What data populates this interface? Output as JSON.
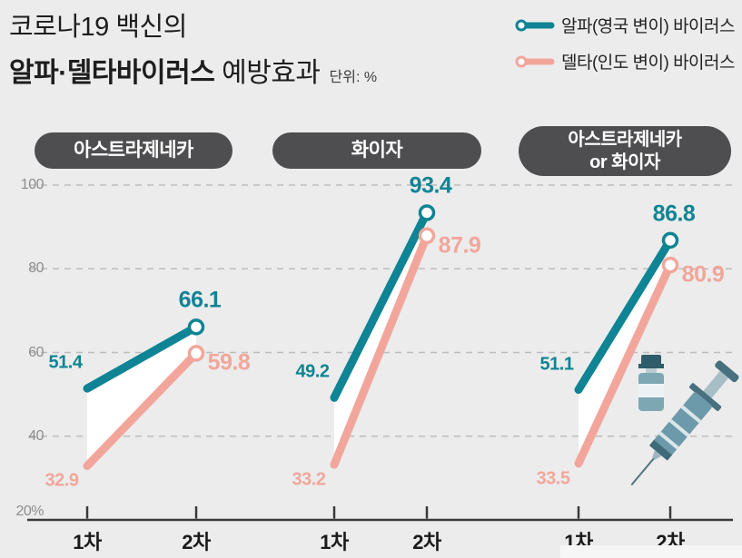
{
  "title": {
    "line1": "코로나19 백신의",
    "line2_bold": "알파·델타바이러스",
    "line2_regular": " 예방효과",
    "unit_label": "단위: %"
  },
  "legend": {
    "items": [
      {
        "label": "알파(영국 변이) 바이러스",
        "color": "#0e8494"
      },
      {
        "label": "델타(인도 변이) 바이러스",
        "color": "#f2a69b"
      }
    ]
  },
  "axis": {
    "y_ticks": [
      "100",
      "80",
      "60",
      "40",
      "20%"
    ],
    "x_labels": [
      "1차",
      "2차"
    ]
  },
  "colors": {
    "alpha": "#0e8494",
    "delta": "#f2a69b",
    "pill_bg": "#4e4e50",
    "background": "#ececec",
    "grid": "#bdbdbd",
    "axis": "#3a3a3a"
  },
  "chart_data": {
    "type": "line",
    "title": "코로나19 백신의 알파·델타바이러스 예방효과",
    "unit": "%",
    "ylim": [
      20,
      100
    ],
    "y_gridlines": [
      100,
      80,
      60,
      40
    ],
    "grid": "dashed",
    "legend_position": "top-right",
    "x": [
      "1차",
      "2차"
    ],
    "panels": [
      {
        "name": "아스트라제네카",
        "series": [
          {
            "name": "알파(영국 변이) 바이러스",
            "color": "#0e8494",
            "values": [
              51.4,
              66.1
            ]
          },
          {
            "name": "델타(인도 변이) 바이러스",
            "color": "#f2a69b",
            "values": [
              32.9,
              59.8
            ]
          }
        ]
      },
      {
        "name": "화이자",
        "series": [
          {
            "name": "알파(영국 변이) 바이러스",
            "color": "#0e8494",
            "values": [
              49.2,
              93.4
            ]
          },
          {
            "name": "델타(인도 변이) 바이러스",
            "color": "#f2a69b",
            "values": [
              33.2,
              87.9
            ]
          }
        ]
      },
      {
        "name": "아스트라제네카\nor 화이자",
        "series": [
          {
            "name": "알파(영국 변이) 바이러스",
            "color": "#0e8494",
            "values": [
              51.1,
              86.8
            ]
          },
          {
            "name": "델타(인도 변이) 바이러스",
            "color": "#f2a69b",
            "values": [
              33.5,
              80.9
            ]
          }
        ]
      }
    ]
  }
}
